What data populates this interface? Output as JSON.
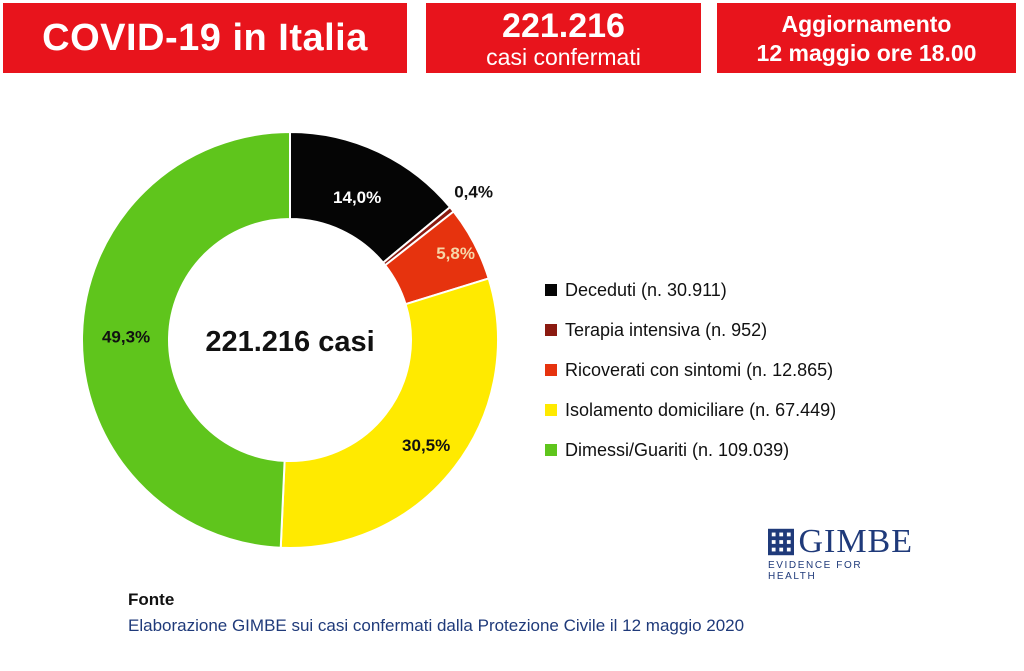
{
  "header": {
    "title": "COVID-19 in Italia",
    "cases_number": "221.216",
    "cases_label": "casi confermati",
    "update_line1": "Aggiornamento",
    "update_line2": "12 maggio ore 18.00"
  },
  "chart_data": {
    "type": "pie",
    "donut": true,
    "center_label": "221.216 casi",
    "total": 221216,
    "series": [
      {
        "name": "Deceduti",
        "legend": "Deceduti (n. 30.911)",
        "value": 30911,
        "percent_label": "14,0%",
        "color": "#050505",
        "label_color": "#ffffff"
      },
      {
        "name": "Terapia intensiva",
        "legend": "Terapia intensiva (n. 952)",
        "value": 952,
        "percent_label": "0,4%",
        "color": "#8b1a10",
        "label_color": "#111111"
      },
      {
        "name": "Ricoverati con sintomi",
        "legend": "Ricoverati con sintomi (n. 12.865)",
        "value": 12865,
        "percent_label": "5,8%",
        "color": "#e6330e",
        "label_color": "#f6d6a8"
      },
      {
        "name": "Isolamento domiciliare",
        "legend": "Isolamento domiciliare (n. 67.449)",
        "value": 67449,
        "percent_label": "30,5%",
        "color": "#ffea00",
        "label_color": "#111111"
      },
      {
        "name": "Dimessi/Guariti",
        "legend": "Dimessi/Guariti (n. 109.039)",
        "value": 109039,
        "percent_label": "49,3%",
        "color": "#5fc51c",
        "label_color": "#111111"
      }
    ]
  },
  "logo": {
    "name": "GIMBE",
    "tagline": "EVIDENCE FOR HEALTH"
  },
  "source": {
    "label": "Fonte",
    "text": "Elaborazione GIMBE sui casi confermati dalla Protezione Civile il 12 maggio 2020"
  }
}
